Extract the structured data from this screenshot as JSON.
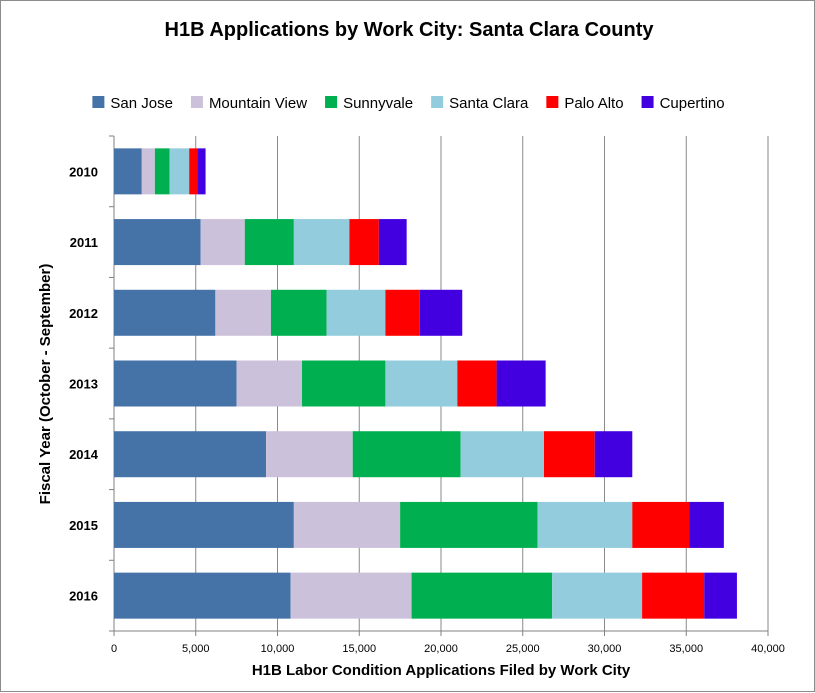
{
  "chart_data": {
    "type": "bar",
    "orientation": "horizontal",
    "stacked": true,
    "title": "H1B Applications by Work City: Santa Clara County",
    "xlabel": "H1B Labor Condition Applications Filed by Work City",
    "ylabel": "Fiscal Year (October - September)",
    "xlim": [
      0,
      40000
    ],
    "xticks": [
      0,
      5000,
      10000,
      15000,
      20000,
      25000,
      30000,
      35000,
      40000
    ],
    "xtick_labels": [
      "0",
      "5,000",
      "10,000",
      "15,000",
      "20,000",
      "25,000",
      "30,000",
      "35,000",
      "40,000"
    ],
    "grid": "vertical",
    "legend_position": "top",
    "categories": [
      "2010",
      "2011",
      "2012",
      "2013",
      "2014",
      "2015",
      "2016"
    ],
    "series": [
      {
        "name": "San Jose",
        "color": "#4573a7",
        "values": [
          1700,
          5300,
          6200,
          7500,
          9300,
          11000,
          10800
        ]
      },
      {
        "name": "Mountain View",
        "color": "#ccc1da",
        "values": [
          800,
          2700,
          3400,
          4000,
          5300,
          6500,
          7400
        ]
      },
      {
        "name": "Sunnyvale",
        "color": "#00b050",
        "values": [
          900,
          3000,
          3400,
          5100,
          6600,
          8400,
          8600
        ]
      },
      {
        "name": "Santa Clara",
        "color": "#93cddd",
        "values": [
          1200,
          3400,
          3600,
          4400,
          5100,
          5800,
          5500
        ]
      },
      {
        "name": "Palo Alto",
        "color": "#ff0000",
        "values": [
          500,
          1800,
          2100,
          2400,
          3100,
          3500,
          3800
        ]
      },
      {
        "name": "Cupertino",
        "color": "#4200e0",
        "values": [
          500,
          1700,
          2600,
          3000,
          2300,
          2100,
          2000
        ]
      }
    ]
  }
}
